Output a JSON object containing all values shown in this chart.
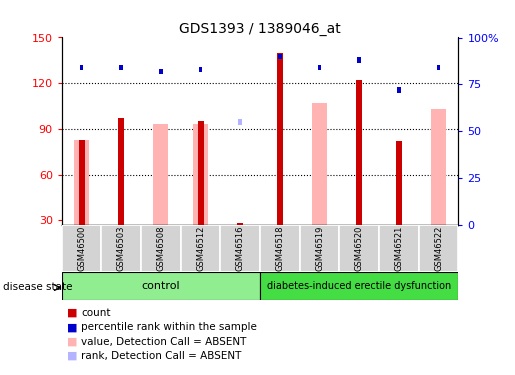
{
  "title": "GDS1393 / 1389046_at",
  "samples": [
    "GSM46500",
    "GSM46503",
    "GSM46508",
    "GSM46512",
    "GSM46516",
    "GSM46518",
    "GSM46519",
    "GSM46520",
    "GSM46521",
    "GSM46522"
  ],
  "red_bar_tops": [
    83,
    97,
    null,
    95,
    null,
    140,
    null,
    122,
    82,
    null
  ],
  "pink_bar_tops": [
    83,
    null,
    93,
    93,
    null,
    null,
    107,
    null,
    null,
    103
  ],
  "blue_dot_y": [
    84,
    84,
    82,
    83,
    null,
    90,
    84,
    88,
    72,
    84
  ],
  "blue_absent_dot_y": [
    null,
    null,
    null,
    null,
    55,
    null,
    null,
    null,
    null,
    null
  ],
  "red_absent_tiny": [
    null,
    null,
    null,
    null,
    28,
    null,
    null,
    null,
    null,
    null
  ],
  "ylim_left": [
    27,
    150
  ],
  "ylim_right": [
    0,
    100
  ],
  "yticks_left": [
    30,
    60,
    90,
    120,
    150
  ],
  "yticks_right": [
    0,
    25,
    50,
    75,
    100
  ],
  "yticklabels_right": [
    "0",
    "25",
    "50",
    "75",
    "100%"
  ],
  "control_count": 5,
  "group_control_label": "control",
  "group_disease_label": "diabetes-induced erectile dysfunction",
  "disease_state_label": "disease state",
  "legend_items": [
    {
      "color": "#cc0000",
      "label": "count"
    },
    {
      "color": "#0000cc",
      "label": "percentile rank within the sample"
    },
    {
      "color": "#ffb3b3",
      "label": "value, Detection Call = ABSENT"
    },
    {
      "color": "#b3b3ff",
      "label": "rank, Detection Call = ABSENT"
    }
  ],
  "color_red": "#cc0000",
  "color_blue": "#0000cc",
  "color_pink": "#ffb3b3",
  "color_blue_absent": "#b3b3ff",
  "color_control_bg": "#90ee90",
  "color_disease_bg": "#44dd44",
  "color_label_bg": "#d3d3d3",
  "n_samples": 10
}
